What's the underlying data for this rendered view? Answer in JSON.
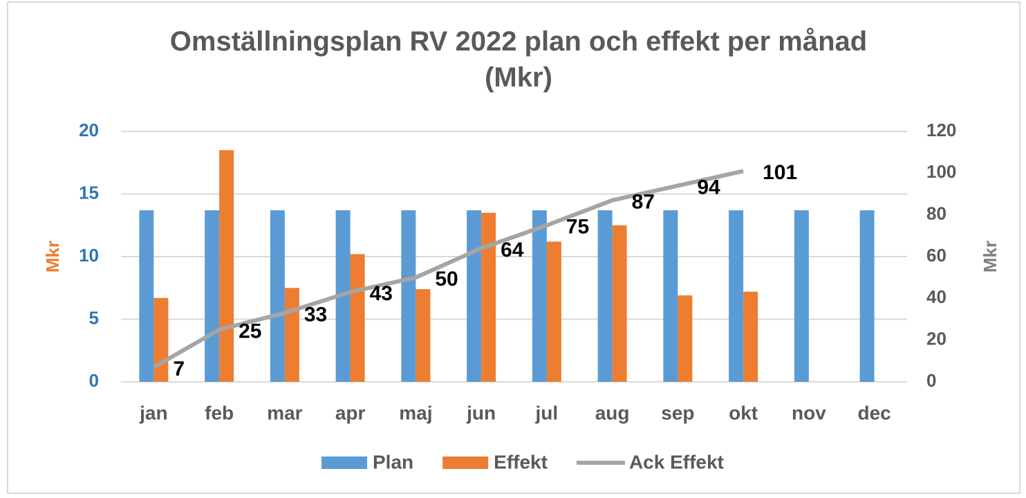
{
  "chart_data": {
    "type": "bar",
    "title": "Omställningsplan RV 2022 plan och effekt per månad (Mkr)",
    "y_label": "Mkr",
    "y2_label": "Mkr",
    "categories": [
      "jan",
      "feb",
      "mar",
      "apr",
      "maj",
      "jun",
      "jul",
      "aug",
      "sep",
      "okt",
      "nov",
      "dec"
    ],
    "series": [
      {
        "name": "Plan",
        "type": "bar",
        "color": "#5b9bd5",
        "values": [
          13.7,
          13.7,
          13.7,
          13.7,
          13.7,
          13.7,
          13.7,
          13.7,
          13.7,
          13.7,
          13.7,
          13.7
        ]
      },
      {
        "name": "Effekt",
        "type": "bar",
        "color": "#ed7d31",
        "values": [
          6.7,
          18.5,
          7.5,
          10.2,
          7.4,
          13.5,
          11.2,
          12.5,
          6.9,
          7.2,
          null,
          null
        ]
      },
      {
        "name": "Ack Effekt",
        "type": "line",
        "axis": "y2",
        "color": "#a5a5a5",
        "values": [
          7,
          25,
          33,
          43,
          50,
          64,
          75,
          87,
          94,
          101,
          null,
          null
        ]
      }
    ],
    "ylim": [
      0,
      20
    ],
    "yticks": [
      0,
      5,
      10,
      15,
      20
    ],
    "y2lim": [
      0,
      120
    ],
    "y2ticks": [
      0,
      20,
      40,
      60,
      80,
      100,
      120
    ],
    "grid": true,
    "legend": "bottom"
  }
}
